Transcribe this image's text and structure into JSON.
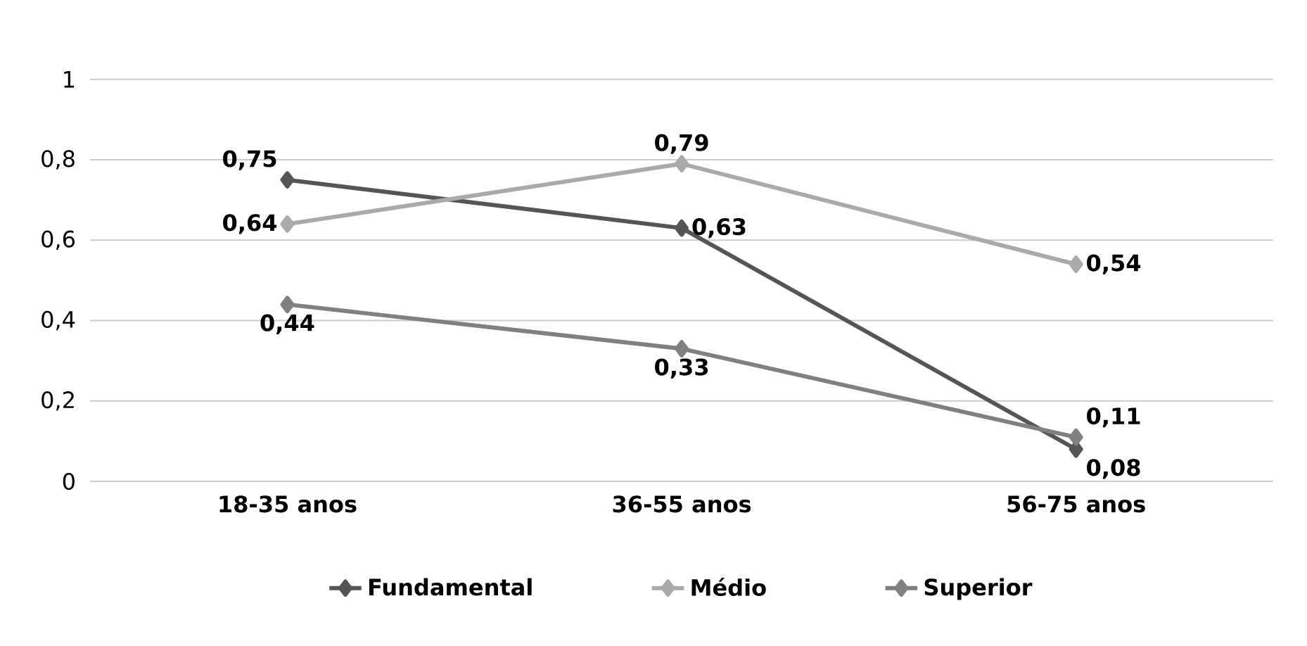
{
  "chart_data": {
    "type": "line",
    "categories": [
      "18-35 anos",
      "36-55 anos",
      "56-75 anos"
    ],
    "series": [
      {
        "name": "Fundamental",
        "color": "#555555",
        "values": [
          0.75,
          0.63,
          0.08
        ],
        "value_labels": [
          "0,75",
          "0,63",
          "0,08"
        ]
      },
      {
        "name": "Médio",
        "color": "#aaaaaa",
        "values": [
          0.64,
          0.79,
          0.54
        ],
        "value_labels": [
          "0,64",
          "0,79",
          "0,54"
        ]
      },
      {
        "name": "Superior",
        "color": "#808080",
        "values": [
          0.44,
          0.33,
          0.11
        ],
        "value_labels": [
          "0,44",
          "0,33",
          "0,11"
        ]
      }
    ],
    "ylim": [
      0,
      1
    ],
    "yticks": [
      {
        "value": 0,
        "label": "0"
      },
      {
        "value": 0.2,
        "label": "0,2"
      },
      {
        "value": 0.4,
        "label": "0,4"
      },
      {
        "value": 0.6,
        "label": "0,6"
      },
      {
        "value": 0.8,
        "label": "0,8"
      },
      {
        "value": 1,
        "label": "1"
      }
    ],
    "grid": "y",
    "legend": "bottom",
    "marker": "diamond",
    "line_style": "solid"
  }
}
